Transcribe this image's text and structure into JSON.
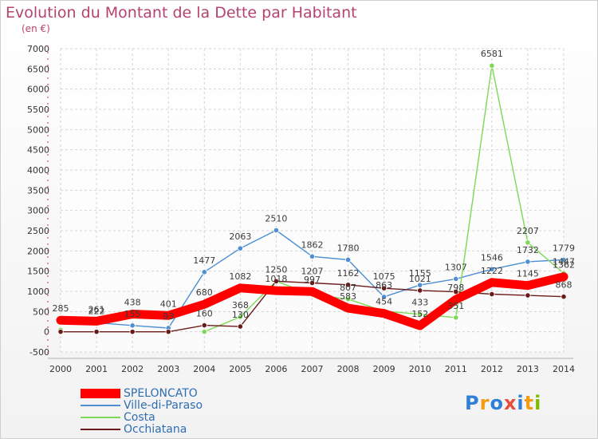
{
  "chart_data": {
    "type": "line",
    "title": "Evolution du Montant de la Dette par Habitant",
    "unit_label": "(en €)",
    "categories": [
      "2000",
      "2001",
      "2002",
      "2003",
      "2004",
      "2005",
      "2006",
      "2007",
      "2008",
      "2009",
      "2010",
      "2011",
      "2012",
      "2013",
      "2014"
    ],
    "y_ticks": [
      -500,
      0,
      500,
      1000,
      1500,
      2000,
      2500,
      3000,
      3500,
      4000,
      4500,
      5000,
      5500,
      6000,
      6500,
      7000
    ],
    "ylim": [
      -500,
      7000
    ],
    "grid": true,
    "legend_position": "bottom-left",
    "series": [
      {
        "name": "SPELONCATO",
        "color": "#ff0000",
        "values": [
          285,
          261,
          438,
          401,
          680,
          1082,
          1018,
          997,
          583,
          454,
          152,
          798,
          1222,
          1145,
          1362
        ],
        "labels": [
          "285",
          "261",
          "438",
          "401",
          "680",
          "1082",
          "1018",
          "997",
          "583",
          "454",
          "152",
          "798",
          "1222",
          "1145",
          "1362"
        ]
      },
      {
        "name": "Ville-di-Paraso",
        "color": "#4d8fd1",
        "values": [
          285,
          222,
          155,
          93,
          1477,
          2063,
          2510,
          1862,
          1780,
          863,
          1155,
          1307,
          1546,
          1732,
          1779
        ],
        "labels": [
          "",
          "222",
          "155",
          "93",
          "1477",
          "2063",
          "2510",
          "1862",
          "1780",
          "863",
          "1155",
          "1307",
          "1546",
          "1732",
          "1779"
        ]
      },
      {
        "name": "Costa",
        "color": "#7ed957",
        "values": [
          47,
          null,
          null,
          null,
          0,
          368,
          1250,
          920,
          807,
          512,
          433,
          351,
          6581,
          2207,
          1447
        ],
        "labels": [
          "",
          "",
          "",
          "",
          "",
          "368",
          "",
          "",
          "807",
          "",
          "433",
          "351",
          "6581",
          "2207",
          "1447"
        ]
      },
      {
        "name": "Occhiatana",
        "color": "#6b1a1a",
        "values": [
          0,
          0,
          0,
          0,
          160,
          130,
          1250,
          1207,
          1162,
          1075,
          1021,
          988,
          930,
          900,
          868
        ],
        "labels": [
          "",
          "",
          "",
          "",
          "160",
          "130",
          "1250",
          "1207",
          "1162",
          "1075",
          "1021",
          "",
          "",
          "",
          "868"
        ]
      }
    ]
  },
  "logo": {
    "letters": [
      "P",
      "r",
      "o",
      "x",
      "i",
      "t",
      "i"
    ],
    "colors": [
      "#2f7ed8",
      "#f39c12",
      "#2f7ed8",
      "#e74c3c",
      "#2f7ed8",
      "#f39c12",
      "#7fba00"
    ]
  }
}
